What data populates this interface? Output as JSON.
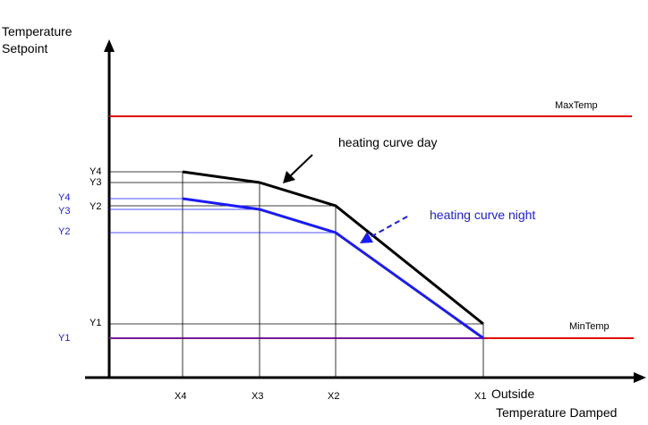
{
  "axes": {
    "y_label_line1": "Temperature",
    "y_label_line2": "Setpoint",
    "x_label_line1": "Outside",
    "x_label_line2": "Temperature Damped"
  },
  "limits": {
    "max": "MaxTemp",
    "min": "MinTemp"
  },
  "curves": {
    "day": {
      "label": "heating curve day",
      "color": "#000000",
      "y_labels": [
        "Y4",
        "Y3",
        "Y2",
        "Y1"
      ]
    },
    "night": {
      "label": "heating curve night",
      "color": "#1a1aff",
      "y_labels": [
        "Y4",
        "Y3",
        "Y2",
        "Y1"
      ]
    }
  },
  "x_ticks": [
    "X4",
    "X3",
    "X2",
    "X1"
  ],
  "colors": {
    "limit_line": "#e00000",
    "min_line_overlap": "#7a1a9a",
    "axis": "#000000",
    "grid": "#000000"
  }
}
